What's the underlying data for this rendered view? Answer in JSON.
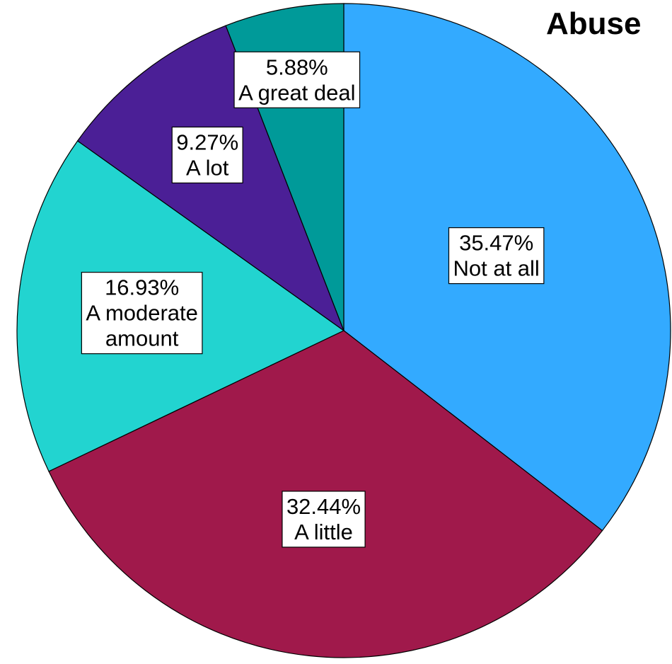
{
  "chart_data": {
    "type": "pie",
    "title": "Abuse",
    "start_angle_deg": 0,
    "direction": "clockwise",
    "slices": [
      {
        "label": "Not at all",
        "value": 35.47,
        "value_text": "35.47%",
        "label_lines": [
          "Not at all"
        ],
        "color": "#33aaff"
      },
      {
        "label": "A little",
        "value": 32.44,
        "value_text": "32.44%",
        "label_lines": [
          "A little"
        ],
        "color": "#a0194b"
      },
      {
        "label": "A moderate amount",
        "value": 16.93,
        "value_text": "16.93%",
        "label_lines": [
          "A moderate",
          "amount"
        ],
        "color": "#22d4d0"
      },
      {
        "label": "A lot",
        "value": 9.27,
        "value_text": "9.27%",
        "label_lines": [
          "A lot"
        ],
        "color": "#4b1f96"
      },
      {
        "label": "A great deal",
        "value": 5.88,
        "value_text": "5.88%",
        "label_lines": [
          "A great deal"
        ],
        "color": "#009a99"
      }
    ]
  }
}
